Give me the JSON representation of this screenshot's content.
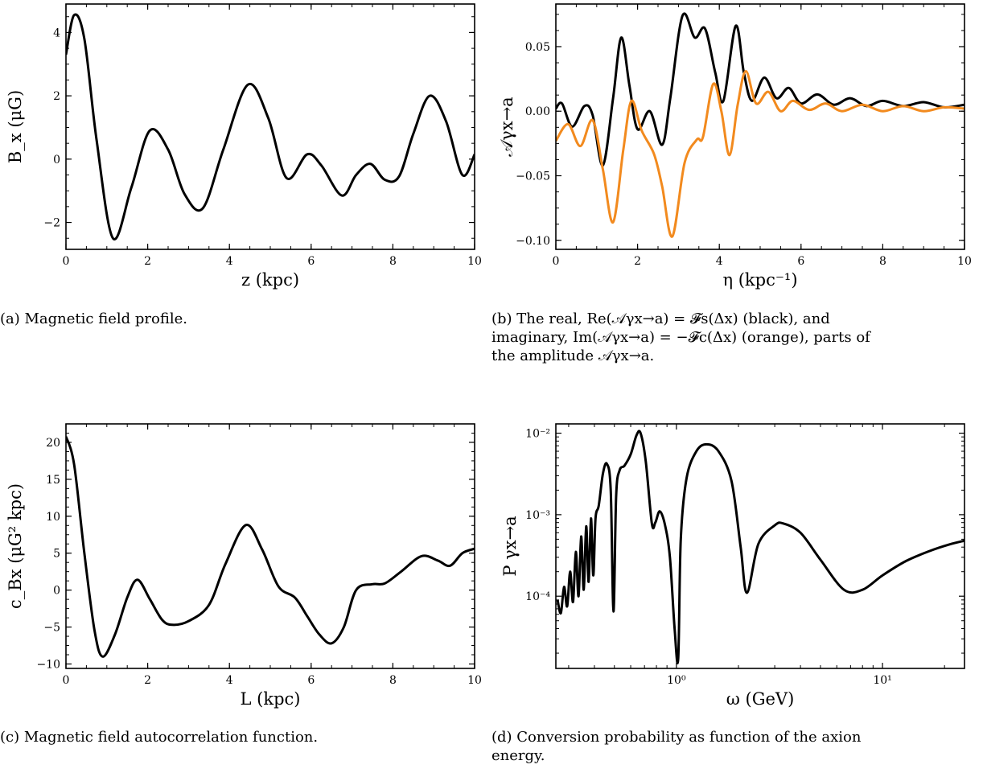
{
  "figure": {
    "captions": {
      "a": "(a) Magnetic field profile.",
      "b_line1": "(b) The real, Re(𝒜γx→a) = 𝓕s(Δx) (black), and",
      "b_line2": "imaginary, Im(𝒜γx→a) = −𝓕c(Δx) (orange), parts of",
      "b_line3": "the amplitude 𝒜γx→a.",
      "c": "(c) Magnetic field autocorrelation function.",
      "d_line1": "(d) Conversion probability as function of the axion",
      "d_line2": "energy."
    }
  },
  "colors": {
    "black": "#000000",
    "orange": "#f28a1e"
  },
  "chart_data": [
    {
      "id": "a",
      "type": "line",
      "xlabel": "z (kpc)",
      "ylabel": "B_x (μG)",
      "xlim": [
        0,
        10
      ],
      "ylim": [
        -2.85,
        4.9
      ],
      "xticks": [
        0,
        2,
        4,
        6,
        8,
        10
      ],
      "yticks": [
        -2,
        0,
        2,
        4
      ],
      "ytick_labels": [
        "−2",
        "0",
        "2",
        "4"
      ],
      "grid": false,
      "series": [
        {
          "color": "#000000",
          "x": [
            0,
            0.2,
            0.45,
            0.75,
            1.15,
            1.6,
            2.05,
            2.5,
            2.9,
            3.35,
            3.85,
            4.45,
            4.95,
            5.4,
            5.9,
            6.25,
            6.75,
            7.1,
            7.45,
            7.8,
            8.15,
            8.5,
            8.9,
            9.3,
            9.7,
            10
          ],
          "y": [
            3.3,
            4.55,
            3.8,
            0.6,
            -2.5,
            -0.9,
            0.9,
            0.3,
            -1.1,
            -1.55,
            0.3,
            2.35,
            1.3,
            -0.6,
            0.15,
            -0.2,
            -1.15,
            -0.5,
            -0.15,
            -0.65,
            -0.55,
            0.8,
            2.0,
            1.2,
            -0.5,
            0.15
          ]
        }
      ]
    },
    {
      "id": "b",
      "type": "line",
      "xlabel": "η (kpc⁻¹)",
      "ylabel": "𝒜γx→a",
      "xlim": [
        0,
        10
      ],
      "ylim": [
        -0.107,
        0.083
      ],
      "xticks": [
        0,
        2,
        4,
        6,
        8,
        10
      ],
      "yticks": [
        -0.1,
        -0.05,
        0.0,
        0.05
      ],
      "ytick_labels": [
        "−0.10",
        "−0.05",
        "0.00",
        "0.05"
      ],
      "grid": false,
      "series": [
        {
          "name": "Re",
          "color": "#000000",
          "x": [
            0,
            0.15,
            0.4,
            0.7,
            0.9,
            1.15,
            1.4,
            1.6,
            1.8,
            2.0,
            2.3,
            2.6,
            2.8,
            3.1,
            3.4,
            3.65,
            3.9,
            4.1,
            4.4,
            4.6,
            4.8,
            5.1,
            5.4,
            5.7,
            6.0,
            6.4,
            6.8,
            7.2,
            7.6,
            8.0,
            8.5,
            9.0,
            9.5,
            10
          ],
          "y": [
            0.002,
            0.006,
            -0.012,
            0.004,
            -0.003,
            -0.042,
            0.01,
            0.057,
            0.02,
            -0.014,
            0.0,
            -0.026,
            0.01,
            0.074,
            0.057,
            0.064,
            0.03,
            0.008,
            0.066,
            0.03,
            0.008,
            0.026,
            0.01,
            0.018,
            0.006,
            0.013,
            0.005,
            0.01,
            0.004,
            0.008,
            0.004,
            0.007,
            0.003,
            0.005
          ]
        },
        {
          "name": "Im",
          "color": "#f28a1e",
          "x": [
            0,
            0.3,
            0.6,
            0.9,
            1.15,
            1.4,
            1.65,
            1.85,
            2.1,
            2.4,
            2.6,
            2.85,
            3.15,
            3.45,
            3.6,
            3.85,
            4.05,
            4.25,
            4.45,
            4.65,
            4.9,
            5.2,
            5.5,
            5.8,
            6.2,
            6.6,
            7.0,
            7.5,
            8.0,
            8.5,
            9.0,
            9.5,
            10
          ],
          "y": [
            -0.023,
            -0.01,
            -0.027,
            -0.007,
            -0.045,
            -0.086,
            -0.03,
            0.008,
            -0.015,
            -0.033,
            -0.058,
            -0.097,
            -0.04,
            -0.022,
            -0.02,
            0.021,
            0.0,
            -0.034,
            0.005,
            0.031,
            0.006,
            0.015,
            0.0,
            0.008,
            0.001,
            0.006,
            0.0,
            0.005,
            0.0,
            0.004,
            0.0,
            0.003,
            0.002
          ]
        }
      ]
    },
    {
      "id": "c",
      "type": "line",
      "xlabel": "L (kpc)",
      "ylabel": "c_Bx (μG² kpc)",
      "xlim": [
        0,
        10
      ],
      "ylim": [
        -10.6,
        22.5
      ],
      "xticks": [
        0,
        2,
        4,
        6,
        8,
        10
      ],
      "yticks": [
        -10,
        -5,
        0,
        5,
        10,
        15,
        20
      ],
      "ytick_labels": [
        "−10",
        "−5",
        "0",
        "5",
        "10",
        "15",
        "20"
      ],
      "grid": false,
      "series": [
        {
          "color": "#000000",
          "x": [
            0,
            0.2,
            0.45,
            0.7,
            0.9,
            1.2,
            1.5,
            1.75,
            2.05,
            2.35,
            2.6,
            3.0,
            3.5,
            3.9,
            4.4,
            4.8,
            5.2,
            5.6,
            5.9,
            6.2,
            6.5,
            6.8,
            7.1,
            7.5,
            7.8,
            8.2,
            8.7,
            9.1,
            9.4,
            9.7,
            10
          ],
          "y": [
            20.8,
            17.0,
            5.0,
            -5.5,
            -9.0,
            -6.0,
            -1.0,
            1.4,
            -1.2,
            -4.0,
            -4.7,
            -4.2,
            -2.0,
            3.5,
            8.8,
            5.5,
            0.5,
            -1.0,
            -3.5,
            -6.0,
            -7.2,
            -5.0,
            0.0,
            0.8,
            0.9,
            2.5,
            4.6,
            4.0,
            3.3,
            5.0,
            5.6
          ]
        }
      ]
    },
    {
      "id": "d",
      "type": "line",
      "scale": "log-log",
      "xlabel": "ω (GeV)",
      "ylabel": "P γx→a",
      "xlim": [
        0.26,
        25
      ],
      "ylim": [
        1.3e-05,
        0.013
      ],
      "xticks": [
        1,
        10
      ],
      "xtick_labels": [
        "10⁰",
        "10¹"
      ],
      "yticks": [
        0.0001,
        0.001,
        0.01
      ],
      "ytick_labels": [
        "10⁻⁴",
        "10⁻³",
        "10⁻²"
      ],
      "grid": false,
      "series": [
        {
          "color": "#000000",
          "x": [
            0.265,
            0.275,
            0.285,
            0.295,
            0.305,
            0.315,
            0.325,
            0.335,
            0.345,
            0.355,
            0.365,
            0.375,
            0.385,
            0.395,
            0.405,
            0.42,
            0.44,
            0.46,
            0.48,
            0.495,
            0.51,
            0.53,
            0.56,
            0.6,
            0.64,
            0.67,
            0.71,
            0.76,
            0.79,
            0.83,
            0.88,
            0.93,
            0.98,
            1.02,
            1.05,
            1.12,
            1.25,
            1.4,
            1.6,
            1.85,
            2.05,
            2.2,
            2.5,
            3.0,
            3.3,
            4.0,
            5.0,
            6.5,
            8.0,
            10.0,
            13.0,
            17.0,
            21.0,
            25.0
          ],
          "y": [
            9e-05,
            6.2e-05,
            0.00013,
            7.5e-05,
            0.0002,
            8.5e-05,
            0.00035,
            0.0001,
            0.00054,
            0.00012,
            0.00072,
            0.00015,
            0.0009,
            0.00018,
            0.0009,
            0.0013,
            0.0032,
            0.0042,
            0.002,
            6.5e-05,
            0.0017,
            0.0035,
            0.004,
            0.0055,
            0.0094,
            0.01,
            0.0045,
            0.00078,
            0.0008,
            0.0011,
            0.00075,
            0.0003,
            4e-05,
            1.7e-05,
            0.0005,
            0.0028,
            0.006,
            0.0073,
            0.006,
            0.0026,
            0.0004,
            0.00011,
            0.00044,
            0.00074,
            0.00078,
            0.0006,
            0.00028,
            0.00012,
            0.00012,
            0.00018,
            0.00027,
            0.00036,
            0.00043,
            0.00048
          ]
        }
      ]
    }
  ]
}
